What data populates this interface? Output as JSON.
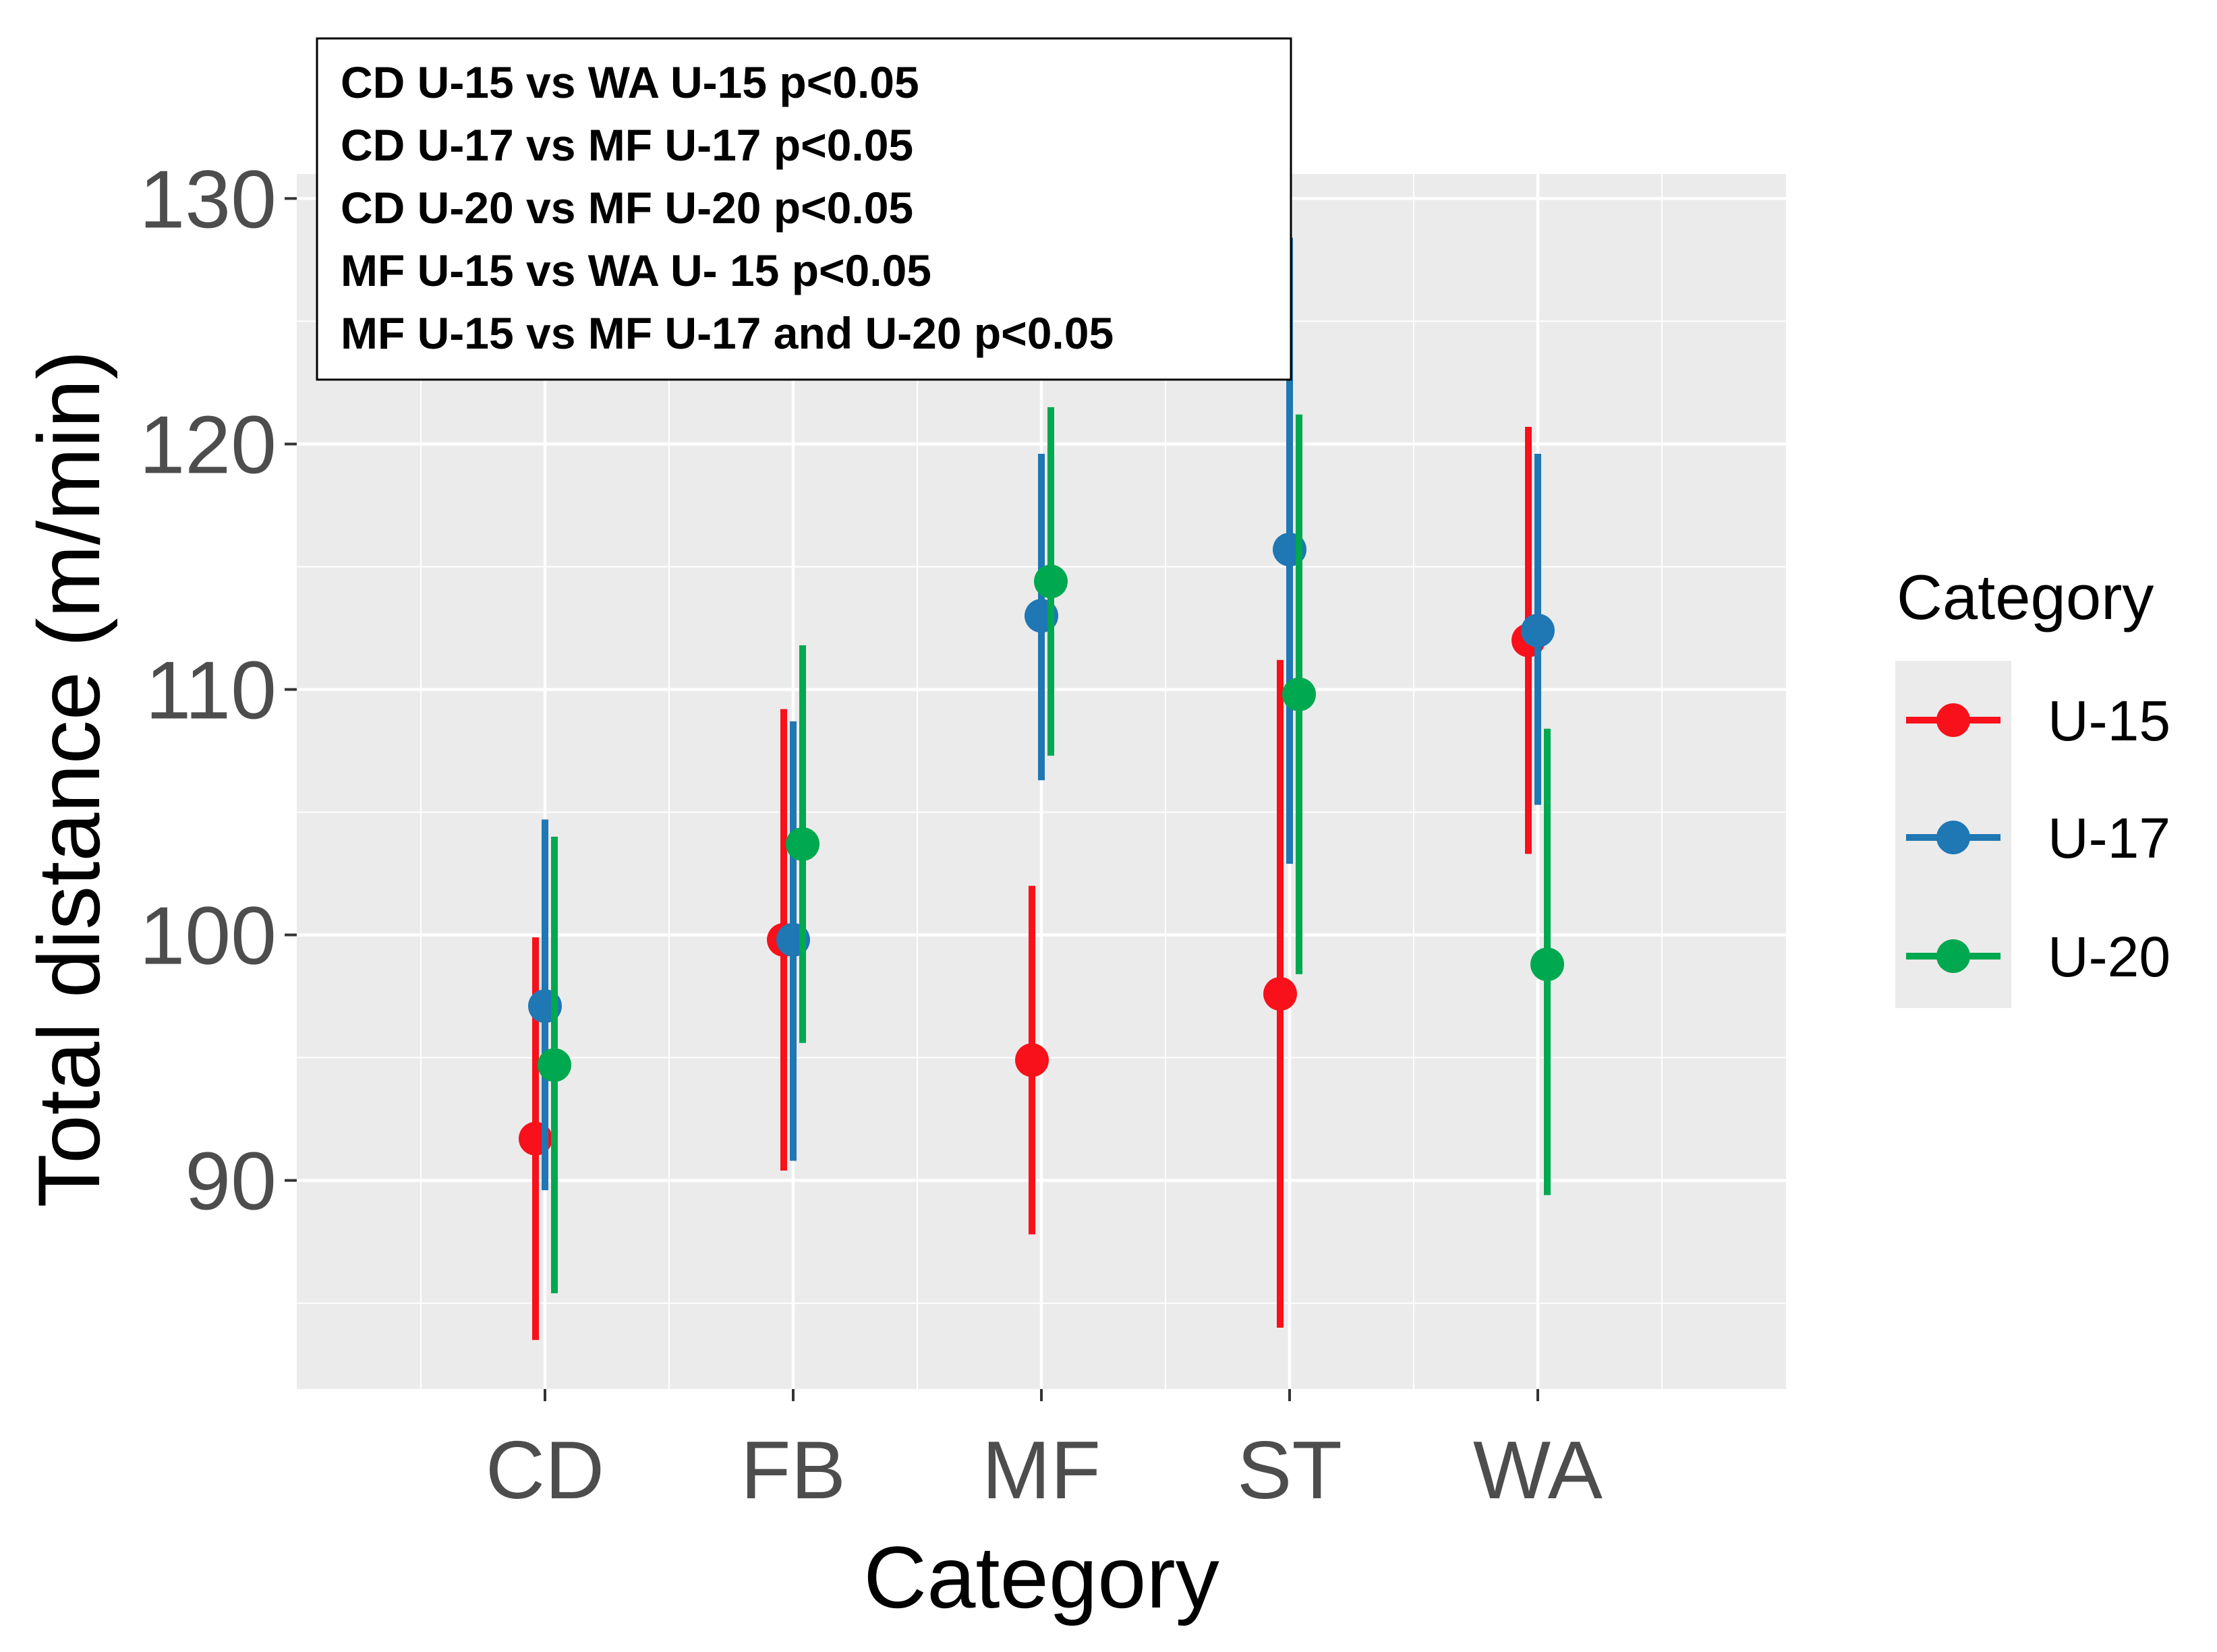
{
  "chart_data": {
    "type": "pointrange",
    "xlabel": "Category",
    "ylabel": "Total distance (m/min)",
    "categories": [
      "CD",
      "FB",
      "MF",
      "ST",
      "WA"
    ],
    "ylim": [
      81.5,
      131
    ],
    "yticks": [
      90,
      100,
      110,
      120,
      130
    ],
    "grid": true,
    "legend": {
      "title": "Category",
      "placement": "right",
      "entries": [
        "U-15",
        "U-17",
        "U-20"
      ]
    },
    "annotation_lines": [
      "CD U-15 vs WA U-15 p<0.05",
      "CD U-17 vs MF U-17 p<0.05",
      "CD U-20 vs MF U-20 p<0.05",
      "MF U-15 vs WA U- 15 p<0.05",
      "MF U-15 vs MF U-17 and U-20 p<0.05"
    ],
    "series": [
      {
        "name": "U-15",
        "color": "#f8101a",
        "mean": [
          91.7,
          99.8,
          94.9,
          97.6,
          112.0
        ],
        "lower": [
          83.5,
          90.4,
          87.8,
          84.0,
          103.3
        ],
        "upper": [
          99.9,
          109.2,
          102.0,
          111.2,
          120.7
        ]
      },
      {
        "name": "U-17",
        "color": "#1f77b4",
        "mean": [
          97.1,
          99.8,
          113.0,
          115.7,
          112.4
        ],
        "lower": [
          89.6,
          90.8,
          106.3,
          102.9,
          105.3
        ],
        "upper": [
          104.7,
          108.7,
          119.6,
          128.4,
          119.6
        ]
      },
      {
        "name": "U-20",
        "color": "#00a84f",
        "mean": [
          94.7,
          103.7,
          114.4,
          109.8,
          98.8
        ],
        "lower": [
          85.4,
          95.6,
          107.3,
          98.4,
          89.4
        ],
        "upper": [
          104.0,
          111.8,
          121.5,
          121.2,
          108.4
        ]
      }
    ]
  }
}
